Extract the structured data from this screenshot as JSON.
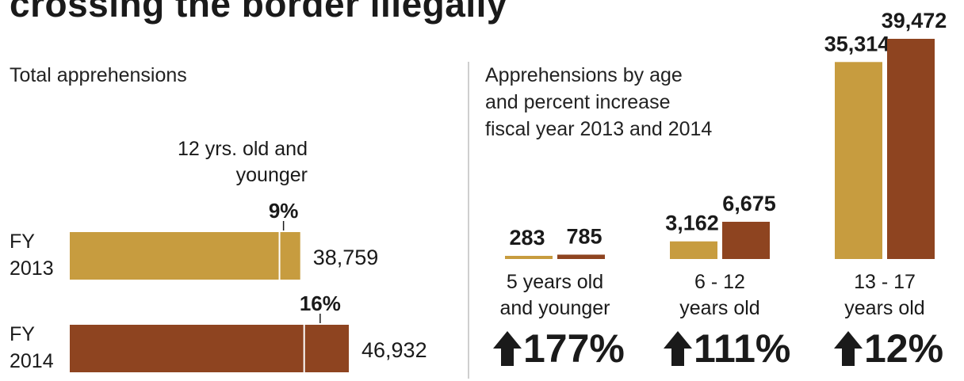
{
  "title": "crossing the border illegally",
  "left_panel": {
    "heading": "Total apprehensions",
    "annotation_lines": [
      "12 yrs. old and",
      "younger"
    ]
  },
  "right_panel": {
    "heading_lines": [
      "Apprehensions by age",
      "and percent increase",
      "fiscal year 2013 and 2014"
    ]
  },
  "colors": {
    "fy2013": "#c79c3f",
    "fy2014": "#8e4420",
    "text": "#1a1a1a",
    "divider": "#cfcfcf"
  },
  "chart_data": [
    {
      "type": "bar",
      "orientation": "horizontal",
      "title": "Total apprehensions",
      "categories": [
        "FY 2013",
        "FY 2014"
      ],
      "category_lines": [
        [
          "FY",
          "2013"
        ],
        [
          "FY",
          "2014"
        ]
      ],
      "values": [
        38759,
        46932
      ],
      "value_labels": [
        "38,759",
        "46,932"
      ],
      "segment_share_12_and_younger": [
        0.09,
        0.16
      ],
      "segment_labels": [
        "9%",
        "16%"
      ]
    },
    {
      "type": "bar",
      "title": "Apprehensions by age and percent increase fiscal year 2013 and 2014",
      "categories": [
        "5 years old and younger",
        "6 - 12 years old",
        "13 - 17 years old"
      ],
      "category_lines": [
        [
          "5 years old",
          "and younger"
        ],
        [
          "6 - 12",
          "years old"
        ],
        [
          "13 - 17",
          "years old"
        ]
      ],
      "series": [
        {
          "name": "FY 2013",
          "values": [
            283,
            3162,
            35314
          ],
          "labels": [
            "283",
            "3,162",
            "35,314"
          ]
        },
        {
          "name": "FY 2014",
          "values": [
            785,
            6675,
            39472
          ],
          "labels": [
            "785",
            "6,675",
            "39,472"
          ]
        }
      ],
      "percent_increase": [
        "177%",
        "111%",
        "12%"
      ],
      "increase_icon": "up-arrow-icon",
      "ylim": [
        0,
        39472
      ]
    }
  ]
}
